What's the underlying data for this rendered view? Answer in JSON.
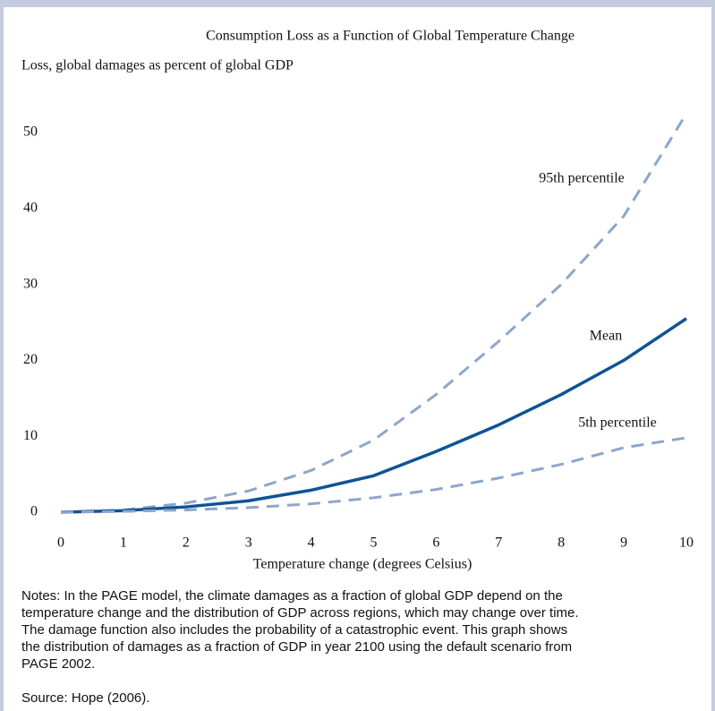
{
  "chart_data": {
    "type": "line",
    "title": "Consumption Loss as a Function of Global Temperature Change",
    "y_label": "Loss, global damages as percent of global GDP",
    "x_label": "Temperature change (degrees Celsius)",
    "x": [
      0,
      1,
      2,
      3,
      4,
      5,
      6,
      7,
      8,
      9,
      10
    ],
    "series": [
      {
        "name": "95th percentile",
        "color": "#8ea6cb",
        "dashed": true,
        "values": [
          0,
          0.3,
          1.2,
          2.8,
          5.5,
          9.5,
          15.5,
          22.5,
          30,
          39,
          52.5
        ]
      },
      {
        "name": "Mean",
        "color": "#0f5396",
        "dashed": false,
        "values": [
          0,
          0.2,
          0.7,
          1.5,
          2.9,
          4.8,
          8,
          11.5,
          15.5,
          20,
          25.5
        ]
      },
      {
        "name": "5th percentile",
        "color": "#8ea6cb",
        "dashed": true,
        "values": [
          0,
          0.1,
          0.3,
          0.6,
          1.1,
          1.9,
          3,
          4.5,
          6.3,
          8.5,
          9.8
        ]
      }
    ],
    "xlim": [
      0,
      10
    ],
    "xticks": [
      0,
      1,
      2,
      3,
      4,
      5,
      6,
      7,
      8,
      9,
      10
    ],
    "ylim": [
      0,
      55
    ],
    "yticks": [
      0,
      10,
      20,
      30,
      40,
      50
    ]
  },
  "notes": [
    "Notes:  In the PAGE model, the climate damages as a fraction of global GDP depend on the",
    "temperature change and the distribution of GDP across regions, which may change over time.",
    "The damage function also includes the probability of a catastrophic event.  This graph shows",
    "the distribution of damages as a fraction of GDP in year 2100 using the default scenario from",
    "PAGE 2002."
  ],
  "source": "Source:  Hope (2006)."
}
